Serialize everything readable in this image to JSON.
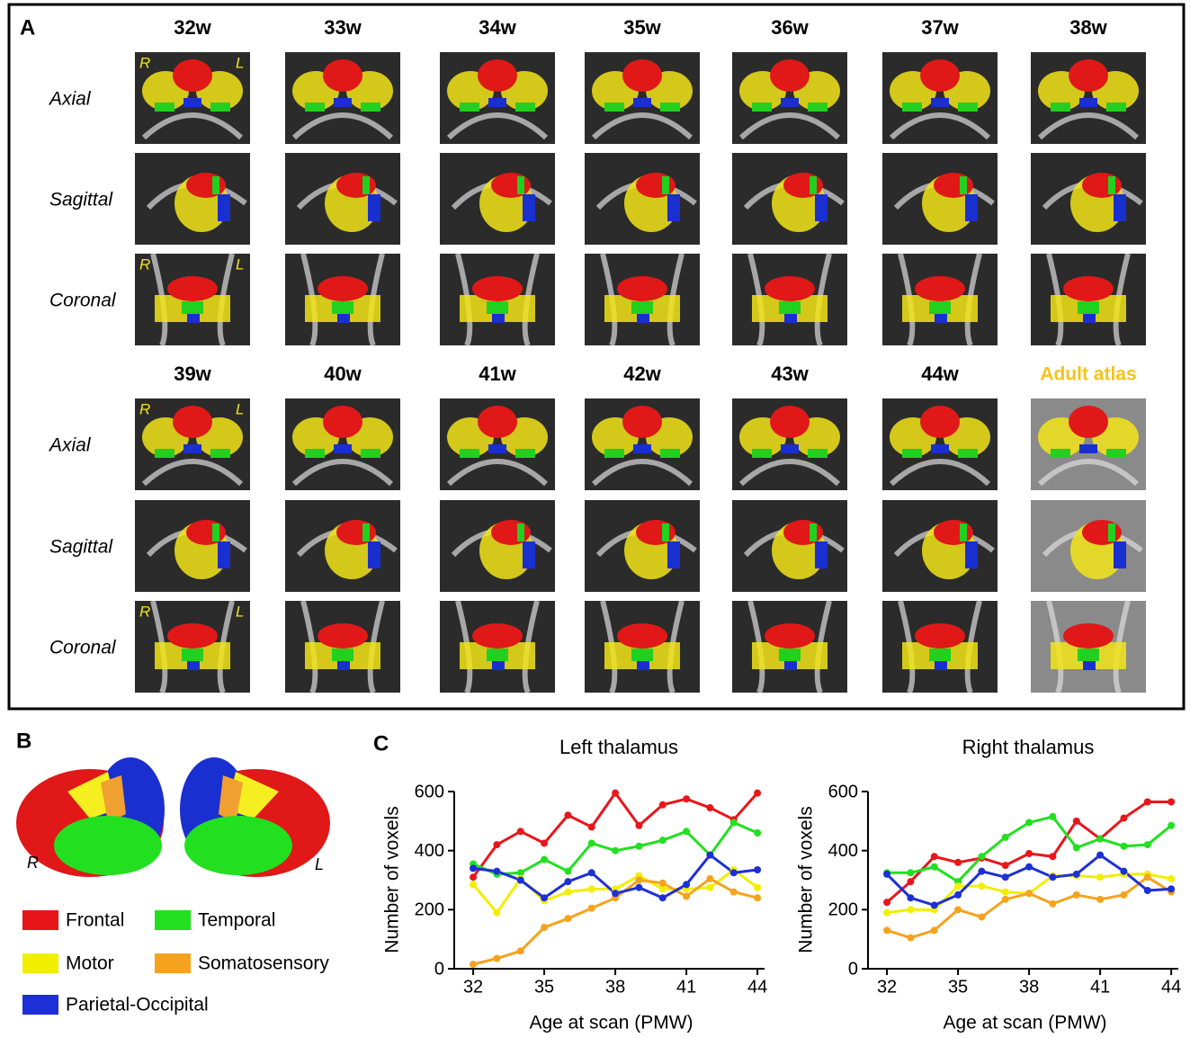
{
  "panel_a": {
    "letter": "A",
    "weeks": [
      "32w",
      "33w",
      "34w",
      "35w",
      "36w",
      "37w",
      "38w",
      "39w",
      "40w",
      "41w",
      "42w",
      "43w",
      "44w"
    ],
    "atlas_label": "Adult atlas",
    "views": [
      "Axial",
      "Sagittal",
      "Coronal"
    ],
    "orientation": [
      "R",
      "L"
    ]
  },
  "panel_b": {
    "letter": "B",
    "hemispheres": [
      "R",
      "L"
    ]
  },
  "panel_c": {
    "letter": "C"
  },
  "chart_data": [
    {
      "type": "line",
      "title": "Left thalamus",
      "x_label": "Age at scan (PMW)",
      "y_label": "Number of voxels",
      "x": [
        32,
        33,
        34,
        35,
        36,
        37,
        38,
        39,
        40,
        41,
        42,
        43,
        44
      ],
      "xlim": [
        31.2,
        44.3
      ],
      "xticks": [
        32,
        35,
        38,
        41,
        44
      ],
      "ylim": [
        0,
        600
      ],
      "yticks": [
        0,
        200,
        400,
        600
      ],
      "grid": false,
      "series": [
        {
          "name": "Frontal",
          "color": "#e8161b",
          "values": [
            310,
            420,
            465,
            425,
            520,
            480,
            595,
            485,
            555,
            575,
            545,
            505,
            595
          ]
        },
        {
          "name": "Temporal",
          "color": "#22e01f",
          "values": [
            355,
            320,
            325,
            370,
            330,
            425,
            400,
            415,
            435,
            465,
            385,
            495,
            460
          ]
        },
        {
          "name": "Motor",
          "color": "#f2ee00",
          "values": [
            285,
            190,
            305,
            230,
            260,
            270,
            270,
            315,
            270,
            270,
            275,
            335,
            275
          ]
        },
        {
          "name": "Somatosensory",
          "color": "#f5a31d",
          "values": [
            15,
            35,
            60,
            140,
            170,
            205,
            240,
            300,
            290,
            245,
            305,
            260,
            240
          ]
        },
        {
          "name": "Parietal-Occipital",
          "color": "#1d2fd6",
          "values": [
            340,
            330,
            300,
            240,
            295,
            325,
            255,
            275,
            240,
            285,
            385,
            325,
            335
          ]
        }
      ]
    },
    {
      "type": "line",
      "title": "Right thalamus",
      "x_label": "Age at scan (PMW)",
      "y_label": "Number of voxels",
      "x": [
        32,
        33,
        34,
        35,
        36,
        37,
        38,
        39,
        40,
        41,
        42,
        43,
        44
      ],
      "xlim": [
        31.2,
        44.3
      ],
      "xticks": [
        32,
        35,
        38,
        41,
        44
      ],
      "ylim": [
        0,
        600
      ],
      "yticks": [
        0,
        200,
        400,
        600
      ],
      "grid": false,
      "series": [
        {
          "name": "Frontal",
          "color": "#e8161b",
          "values": [
            225,
            295,
            380,
            360,
            375,
            350,
            390,
            380,
            500,
            440,
            510,
            565,
            565
          ]
        },
        {
          "name": "Temporal",
          "color": "#22e01f",
          "values": [
            325,
            325,
            345,
            295,
            380,
            445,
            495,
            515,
            410,
            440,
            415,
            420,
            485
          ]
        },
        {
          "name": "Motor",
          "color": "#f2ee00",
          "values": [
            190,
            200,
            200,
            280,
            280,
            260,
            255,
            315,
            315,
            310,
            320,
            320,
            305
          ]
        },
        {
          "name": "Somatosensory",
          "color": "#f5a31d",
          "values": [
            130,
            105,
            130,
            200,
            175,
            235,
            255,
            220,
            250,
            235,
            250,
            310,
            260
          ]
        },
        {
          "name": "Parietal-Occipital",
          "color": "#1d2fd6",
          "values": [
            320,
            240,
            215,
            250,
            330,
            310,
            345,
            310,
            320,
            385,
            330,
            265,
            270
          ]
        }
      ]
    }
  ]
}
